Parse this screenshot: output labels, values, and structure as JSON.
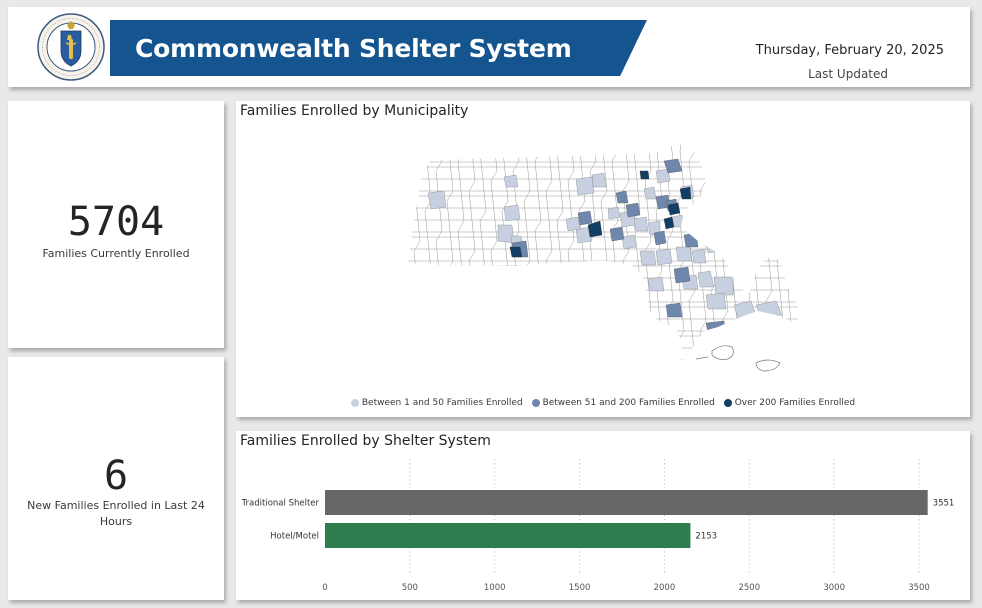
{
  "header": {
    "title": "Commonwealth Shelter System",
    "date": "Thursday, February 20, 2025",
    "updated_label": "Last Updated"
  },
  "kpis": {
    "families_enrolled": {
      "value": "5704",
      "label": "Families Currently Enrolled"
    },
    "new_families": {
      "value": "6",
      "label": "New Families Enrolled in Last 24 Hours"
    }
  },
  "map": {
    "title": "Families Enrolled by Municipality",
    "legend": [
      {
        "label": "Between 1 and 50 Families Enrolled",
        "color": "#c6d0e0"
      },
      {
        "label": "Between 51 and 200 Families Enrolled",
        "color": "#6f86ad"
      },
      {
        "label": "Over 200 Families Enrolled",
        "color": "#123f66"
      }
    ]
  },
  "bar": {
    "title": "Families Enrolled by Shelter System"
  },
  "chart_data": {
    "type": "bar",
    "orientation": "horizontal",
    "categories": [
      "Traditional Shelter",
      "Hotel/Motel"
    ],
    "values": [
      3551,
      2153
    ],
    "colors": [
      "#666666",
      "#2e7d4f"
    ],
    "title": "Families Enrolled by Shelter System",
    "xlim": [
      0,
      3600
    ],
    "xticks": [
      0,
      500,
      1000,
      1500,
      2000,
      2500,
      3000,
      3500
    ],
    "grid": "vertical dotted",
    "data_labels": true
  }
}
